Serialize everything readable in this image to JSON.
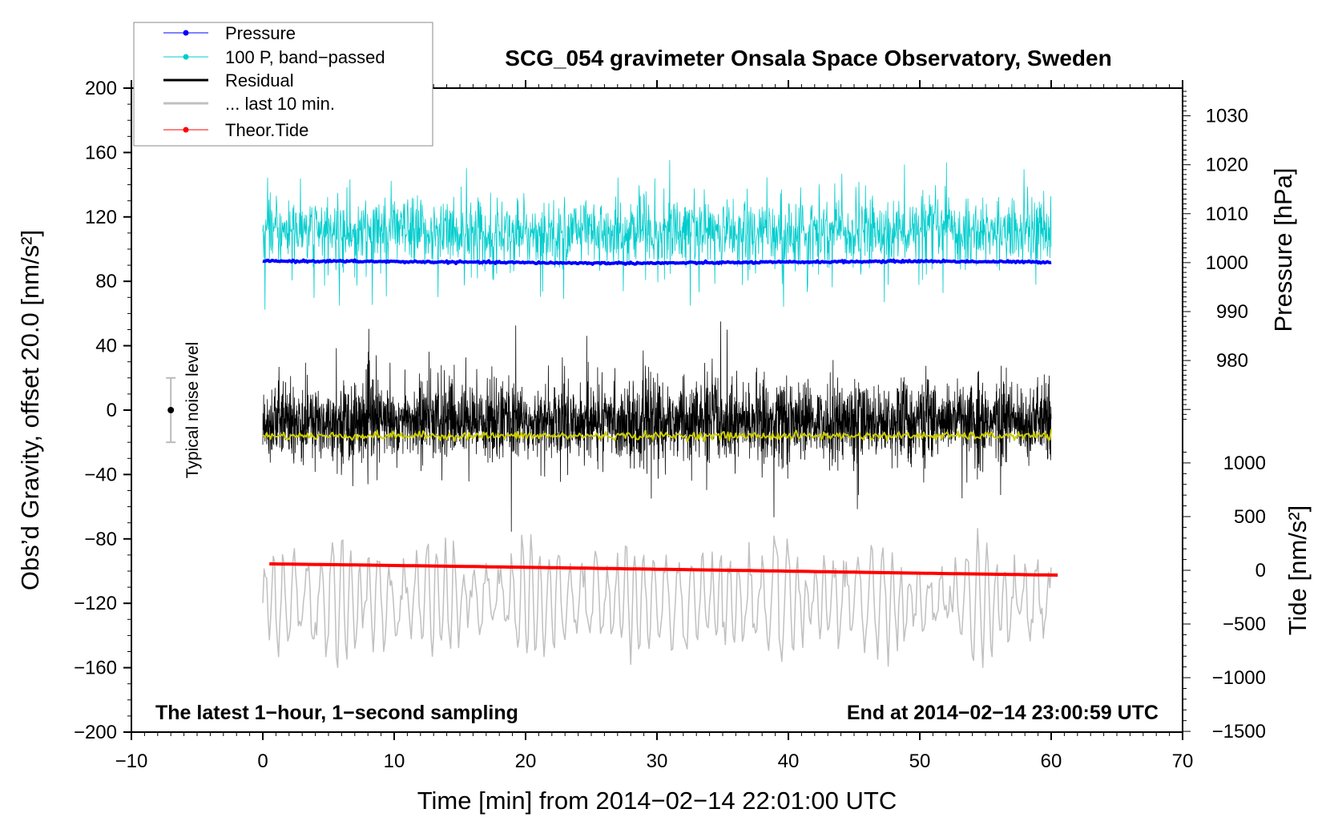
{
  "chart_data": {
    "type": "line",
    "title": "SCG_054 gravimeter Onsala Space Observatory, Sweden",
    "xlabel": "Time [min] from 2014−02−14 22:01:00 UTC",
    "ylabel": "Obs’d Gravity, offset 20.0 [nm/s²]",
    "ylabel_right_top": "Pressure [hPa]",
    "ylabel_right_bottom": "Tide [nm/s²]",
    "xlim": [
      -10,
      70
    ],
    "ylim": [
      -200,
      200
    ],
    "grid": false,
    "legend_position": "top-left",
    "x_ticks": [
      -10,
      0,
      10,
      20,
      30,
      40,
      50,
      60,
      70
    ],
    "x_tick_labels": [
      "−10",
      "0",
      "10",
      "20",
      "30",
      "40",
      "50",
      "60",
      "70"
    ],
    "y_ticks": [
      200,
      160,
      120,
      80,
      40,
      0,
      -40,
      -80,
      -120,
      -160,
      -200
    ],
    "y_tick_labels": [
      "200",
      "160",
      "120",
      "80",
      "40",
      "0",
      "−40",
      "−80",
      "−120",
      "−160",
      "−200"
    ],
    "pressure_axis": {
      "ticks": [
        1030,
        1020,
        1010,
        1000,
        990,
        980
      ],
      "tick_labels": [
        "1030",
        "1020",
        "1010",
        "1000",
        "990",
        "980"
      ],
      "gravity_at_1000hPa": 91.6,
      "gravity_per_hPa": 3.04,
      "minor_range": [
        968,
        1035
      ]
    },
    "tide_axis": {
      "ticks": [
        1000,
        500,
        0,
        -500,
        -1000,
        -1500
      ],
      "tick_labels": [
        "1000",
        "500",
        "0",
        "−500",
        "−1000",
        "−1500"
      ],
      "gravity_at_zero": -99.5,
      "gravity_per_unit": 0.0667,
      "minor_range": [
        -1500,
        1100
      ]
    },
    "legend": [
      {
        "label": "Pressure",
        "color": "#0000ff",
        "marker": true
      },
      {
        "label": "100 P, band−passed",
        "color": "#00cccc",
        "marker": true
      },
      {
        "label": "Residual",
        "color": "#000000",
        "marker": false
      },
      {
        "label": "... last 10 min.",
        "color": "#c0c0c0",
        "marker": false
      },
      {
        "label": "Theor.Tide",
        "color": "#ff0000",
        "marker": true
      }
    ],
    "series": [
      {
        "name": "Pressure",
        "unit": "hPa",
        "color": "#0000ff",
        "x": [
          0,
          5,
          10,
          15,
          20,
          25,
          30,
          35,
          40,
          45,
          50,
          55,
          60
        ],
        "values": [
          1000.3,
          1000.3,
          1000.2,
          1000.1,
          1000.0,
          999.9,
          999.9,
          1000.0,
          1000.1,
          1000.2,
          1000.3,
          1000.2,
          1000.1
        ]
      },
      {
        "name": "100 P, band-passed",
        "color": "#00cccc",
        "center": 111,
        "amplitude": 10,
        "spike": 30,
        "x_range": [
          0,
          60
        ]
      },
      {
        "name": "Residual",
        "color": "#000000",
        "center": -7,
        "amplitude": 13,
        "spike": 45,
        "x_range": [
          0,
          60
        ]
      },
      {
        "name": "Residual smoothed",
        "color": "#cccc00",
        "center": -16,
        "amplitude": 1.2,
        "x_range": [
          0,
          60
        ]
      },
      {
        "name": "... last 10 min.",
        "color": "#c0c0c0",
        "center": -118,
        "amplitude": 30,
        "x_range": [
          0,
          60
        ]
      },
      {
        "name": "Theor.Tide",
        "unit": "nm/s²",
        "color": "#ff0000",
        "x": [
          0.5,
          10,
          20,
          30,
          40,
          50,
          60.5
        ],
        "values": [
          60,
          45,
          28,
          10,
          -8,
          -27,
          -45
        ]
      }
    ],
    "noise_level": {
      "label": "Typical noise level",
      "center": 0,
      "half_range": 20,
      "x": -7
    },
    "annotations": {
      "left": "The latest 1−hour, 1−second sampling",
      "right": "End at 2014−02−14 23:00:59 UTC"
    }
  }
}
